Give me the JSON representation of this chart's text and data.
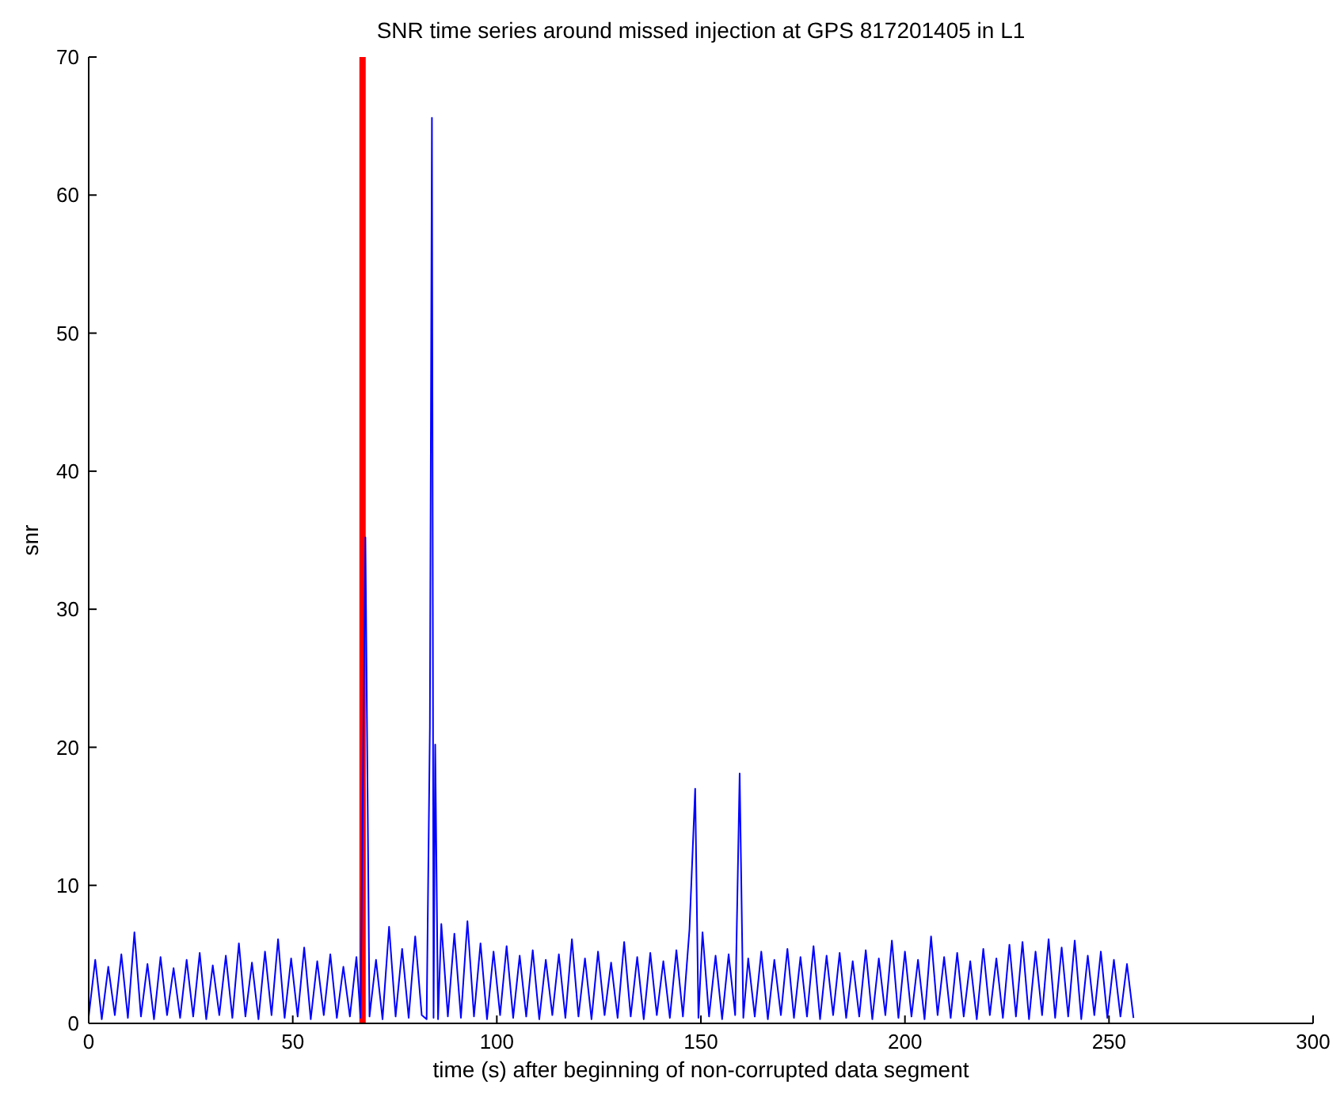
{
  "chart_data": {
    "type": "line",
    "title": "SNR time series around missed injection at GPS 817201405 in L1",
    "xlabel": "time (s) after beginning of non-corrupted data segment",
    "ylabel": "snr",
    "xlim": [
      0,
      300
    ],
    "xticks": [
      0,
      50,
      100,
      150,
      200,
      250,
      300
    ],
    "ylim": [
      0,
      70
    ],
    "yticks": [
      0,
      10,
      20,
      30,
      40,
      50,
      60,
      70
    ],
    "ref_lines": [
      {
        "axis": "x",
        "value": 67.1,
        "color": "#ff0000"
      }
    ],
    "series": [
      {
        "color": "#0000ff",
        "x": [
          0,
          1.6,
          3.2,
          4.8,
          6.4,
          8,
          9.6,
          11.2,
          12.8,
          14.4,
          16,
          17.6,
          19.2,
          20.8,
          22.4,
          24,
          25.6,
          27.2,
          28.8,
          30.4,
          32,
          33.6,
          35.2,
          36.8,
          38.4,
          40,
          41.6,
          43.2,
          44.8,
          46.4,
          48,
          49.6,
          51.2,
          52.8,
          54.4,
          56,
          57.6,
          59.2,
          60.8,
          62.4,
          64,
          65.6,
          66.6,
          67.8,
          68.8,
          70.4,
          72,
          73.6,
          75.2,
          76.8,
          78.4,
          80,
          81.6,
          82.8,
          83.6,
          84.1,
          84.5,
          84.9,
          85.6,
          86.4,
          88,
          89.6,
          91.2,
          92.8,
          94.4,
          96,
          97.6,
          99.2,
          100.8,
          102.4,
          104,
          105.6,
          107.2,
          108.8,
          110.4,
          112,
          113.6,
          115.2,
          116.8,
          118.4,
          120,
          121.6,
          123.2,
          124.8,
          126.4,
          128,
          129.6,
          131.2,
          132.8,
          134.4,
          136,
          137.6,
          139.2,
          140.8,
          142.4,
          144,
          145.6,
          147.2,
          148.6,
          149.4,
          150.4,
          152,
          153.6,
          155.2,
          156.8,
          158.4,
          159.5,
          160.4,
          161.6,
          163.2,
          164.8,
          166.4,
          168,
          169.6,
          171.2,
          172.8,
          174.4,
          176,
          177.6,
          179.2,
          180.8,
          182.4,
          184,
          185.6,
          187.2,
          188.8,
          190.4,
          192,
          193.6,
          195.2,
          196.8,
          198.4,
          200,
          201.6,
          203.2,
          204.8,
          206.4,
          208,
          209.6,
          211.2,
          212.8,
          214.4,
          216,
          217.6,
          219.2,
          220.8,
          222.4,
          224,
          225.6,
          227.2,
          228.8,
          230.4,
          232,
          233.6,
          235.2,
          236.8,
          238.4,
          240,
          241.6,
          243.2,
          244.8,
          246.4,
          248,
          249.6,
          251.2,
          252.8,
          254.4,
          256
        ],
        "values": [
          0.5,
          4.6,
          0.3,
          4.1,
          0.6,
          5.0,
          0.4,
          6.6,
          0.5,
          4.3,
          0.3,
          4.8,
          0.6,
          4.0,
          0.4,
          4.6,
          0.5,
          5.1,
          0.3,
          4.2,
          0.6,
          4.9,
          0.4,
          5.8,
          0.5,
          4.4,
          0.3,
          5.2,
          0.6,
          6.1,
          0.4,
          4.7,
          0.5,
          5.5,
          0.3,
          4.5,
          0.6,
          5.0,
          0.4,
          4.1,
          0.5,
          4.8,
          0.4,
          35.2,
          0.5,
          4.6,
          0.3,
          7.0,
          0.5,
          5.4,
          0.4,
          6.3,
          0.6,
          0.3,
          21.5,
          65.6,
          0.4,
          20.2,
          0.3,
          7.2,
          0.5,
          6.5,
          0.4,
          7.4,
          0.5,
          5.8,
          0.3,
          5.2,
          0.6,
          5.6,
          0.4,
          4.9,
          0.5,
          5.3,
          0.3,
          4.6,
          0.6,
          5.0,
          0.4,
          6.1,
          0.5,
          4.7,
          0.3,
          5.2,
          0.6,
          4.4,
          0.4,
          5.9,
          0.5,
          4.8,
          0.3,
          5.1,
          0.6,
          4.5,
          0.4,
          5.3,
          0.5,
          6.8,
          17.0,
          0.4,
          6.6,
          0.5,
          4.9,
          0.3,
          5.0,
          0.6,
          18.1,
          0.4,
          4.7,
          0.5,
          5.2,
          0.3,
          4.6,
          0.6,
          5.4,
          0.4,
          4.8,
          0.5,
          5.6,
          0.3,
          4.9,
          0.6,
          5.1,
          0.4,
          4.5,
          0.5,
          5.3,
          0.3,
          4.7,
          0.6,
          6.0,
          0.4,
          5.2,
          0.5,
          4.6,
          0.3,
          6.3,
          0.6,
          4.8,
          0.4,
          5.1,
          0.5,
          4.5,
          0.3,
          5.4,
          0.6,
          4.7,
          0.4,
          5.7,
          0.5,
          5.9,
          0.3,
          5.2,
          0.6,
          6.1,
          0.4,
          5.5,
          0.5,
          6.0,
          0.3,
          4.9,
          0.6,
          5.2,
          0.4,
          4.6,
          0.5,
          4.3,
          0.4
        ]
      }
    ]
  }
}
